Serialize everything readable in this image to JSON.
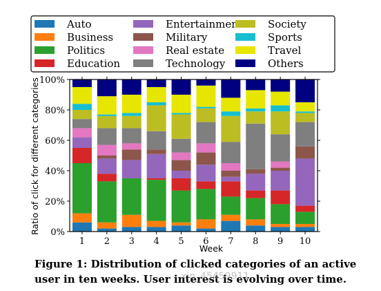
{
  "chart_data": {
    "type": "bar",
    "stacked": true,
    "categories": [
      "1",
      "2",
      "3",
      "4",
      "5",
      "6",
      "7",
      "8",
      "9",
      "10"
    ],
    "xlabel": "Week",
    "ylabel": "Ratio of click for different categories",
    "ylim": [
      0,
      100
    ],
    "yticks": [
      "0%",
      "20%",
      "40%",
      "60%",
      "80%",
      "100%"
    ],
    "legend_placement": "top",
    "series": [
      {
        "name": "Auto",
        "color": "#1f77b4",
        "values": [
          6,
          2,
          3,
          3,
          4,
          2,
          7,
          4,
          3,
          3
        ]
      },
      {
        "name": "Business",
        "color": "#ff7f0e",
        "values": [
          6,
          4,
          8,
          4,
          2,
          6,
          4,
          4,
          2,
          2
        ]
      },
      {
        "name": "Politics",
        "color": "#2ca02c",
        "values": [
          33,
          27,
          24,
          27,
          21,
          20,
          12,
          14,
          13,
          8
        ]
      },
      {
        "name": "Education",
        "color": "#d62728",
        "values": [
          10,
          5,
          0,
          1,
          8,
          5,
          10,
          5,
          9,
          4
        ]
      },
      {
        "name": "Entertainment",
        "color": "#9467bd",
        "values": [
          7,
          10,
          12,
          16,
          5,
          11,
          3,
          11,
          13,
          31
        ]
      },
      {
        "name": "Military",
        "color": "#8c564b",
        "values": [
          0,
          2,
          7,
          3,
          7,
          8,
          4,
          3,
          2,
          8
        ]
      },
      {
        "name": "Real estate",
        "color": "#e377c2",
        "values": [
          6,
          7,
          4,
          0,
          5,
          6,
          5,
          0,
          4,
          0
        ]
      },
      {
        "name": "Technology",
        "color": "#7f7f7f",
        "values": [
          6,
          11,
          10,
          12,
          9,
          14,
          14,
          30,
          18,
          16
        ]
      },
      {
        "name": "Society",
        "color": "#bcbd22",
        "values": [
          6,
          8,
          8,
          17,
          16,
          9,
          17,
          8,
          15,
          6
        ]
      },
      {
        "name": "Sports",
        "color": "#17becf",
        "values": [
          4,
          1,
          2,
          2,
          1,
          1,
          3,
          2,
          4,
          1
        ]
      },
      {
        "name": "Travel",
        "color": "#e6e600",
        "values": [
          11,
          12,
          12,
          10,
          12,
          14,
          9,
          12,
          9,
          6
        ]
      },
      {
        "name": "Others",
        "color": "#000080",
        "values": [
          5,
          11,
          10,
          5,
          10,
          4,
          12,
          7,
          8,
          15
        ]
      }
    ]
  },
  "caption": "Figure 1: Distribution of clicked categories of an active user in ten weeks. User interest is evolving over time.",
  "watermark": "xin_45459911"
}
